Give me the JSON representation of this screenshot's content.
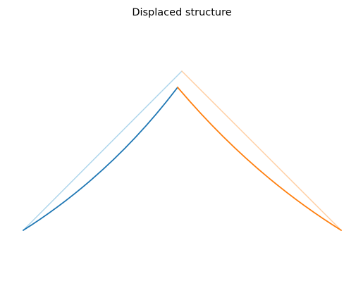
{
  "figure": {
    "title": "Displaced structure"
  },
  "colors": {
    "member1": "#1f77b4",
    "member2": "#ff7f0e",
    "member1_undeformed": "#aed6ec",
    "member2_undeformed": "#ffcfa4",
    "background": "#ffffff"
  },
  "structure": {
    "type": "two-member frame (inverted V)",
    "members": [
      {
        "name": "member-1",
        "from": "left-support",
        "to": "apex",
        "color_key": "member1"
      },
      {
        "name": "member-2",
        "from": "apex",
        "to": "right-support",
        "color_key": "member2"
      }
    ],
    "shapes": [
      "undeformed",
      "displaced"
    ]
  }
}
